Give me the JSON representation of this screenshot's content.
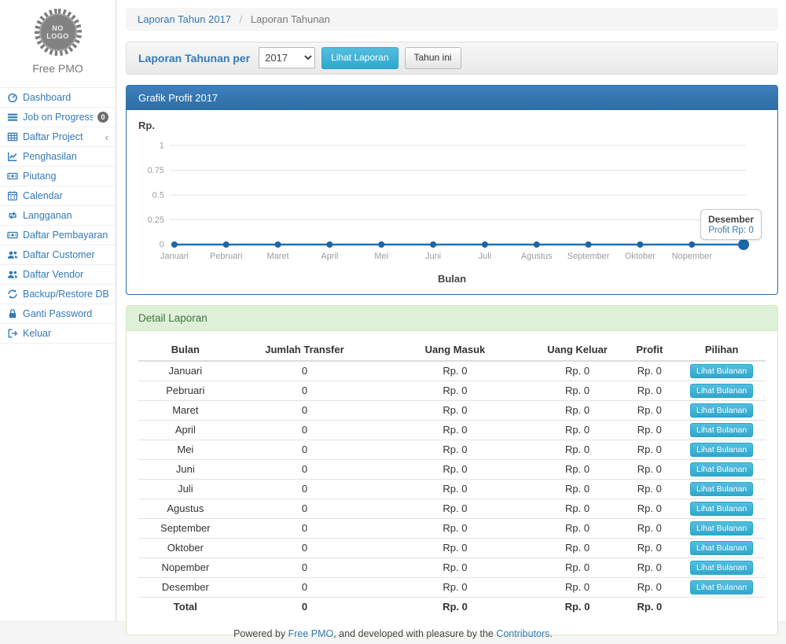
{
  "sidebar": {
    "logo_line1": "NO",
    "logo_line2": "LOGO",
    "brand": "Free PMO",
    "items": [
      {
        "label": "Dashboard",
        "icon": "dashboard-icon"
      },
      {
        "label": "Job on Progress",
        "icon": "tasks-icon",
        "badge": "0"
      },
      {
        "label": "Daftar Project",
        "icon": "table-icon",
        "chevron": "‹"
      },
      {
        "label": "Penghasilan",
        "icon": "line-chart-icon"
      },
      {
        "label": "Piutang",
        "icon": "money-icon"
      },
      {
        "label": "Calendar",
        "icon": "calendar-icon"
      },
      {
        "label": "Langganan",
        "icon": "retweet-icon"
      },
      {
        "label": "Daftar Pembayaran",
        "icon": "money-icon"
      },
      {
        "label": "Daftar Customer",
        "icon": "users-icon"
      },
      {
        "label": "Daftar Vendor",
        "icon": "users-icon"
      },
      {
        "label": "Backup/Restore DB",
        "icon": "refresh-icon"
      },
      {
        "label": "Ganti Password",
        "icon": "lock-icon"
      },
      {
        "label": "Keluar",
        "icon": "sign-out-icon"
      }
    ]
  },
  "breadcrumb": {
    "separator": "/",
    "items": [
      {
        "label": "Laporan Tahun 2017",
        "link": true
      },
      {
        "label": "Laporan Tahunan",
        "link": false
      }
    ]
  },
  "toolbar": {
    "label": "Laporan Tahunan per",
    "year_selected": "2017",
    "year_options": [
      "2017"
    ],
    "view_button": "Lihat Laporan",
    "this_year_button": "Tahun ini"
  },
  "chart_panel": {
    "title": "Grafik Profit 2017"
  },
  "chart_data": {
    "type": "line",
    "title": "Grafik Profit 2017",
    "categories": [
      "Januari",
      "Pebruari",
      "Maret",
      "April",
      "Mei",
      "Juni",
      "Juli",
      "Agustus",
      "September",
      "Oktober",
      "Nopember",
      "Desember"
    ],
    "values": [
      0,
      0,
      0,
      0,
      0,
      0,
      0,
      0,
      0,
      0,
      0,
      0
    ],
    "xlabel": "Bulan",
    "ylabel": "Rp.",
    "ylim": [
      0,
      1
    ],
    "yticks": [
      0,
      0.25,
      0.5,
      0.75,
      1
    ],
    "ytick_labels": [
      "0",
      "0.25",
      "0.5",
      "0.75",
      "1"
    ],
    "grid": true,
    "legend": false,
    "last_category_label_hidden": true,
    "highlight_point": "Desember",
    "line_color": "#2270b4",
    "point_color": "#1d66a8",
    "grid_color": "#e3e3e3",
    "axis_text_color": "#9c9c9c",
    "tooltip": {
      "title": "Desember",
      "value": "Profit Rp: 0"
    }
  },
  "detail_panel": {
    "title": "Detail Laporan",
    "columns": [
      "Bulan",
      "Jumlah Transfer",
      "Uang Masuk",
      "Uang Keluar",
      "Profit",
      "Pilihan"
    ],
    "action_label": "Lihat Bulanan",
    "rows": [
      {
        "bulan": "Januari",
        "jumlah_transfer": "0",
        "uang_masuk": "Rp. 0",
        "uang_keluar": "Rp. 0",
        "profit": "Rp. 0"
      },
      {
        "bulan": "Pebruari",
        "jumlah_transfer": "0",
        "uang_masuk": "Rp. 0",
        "uang_keluar": "Rp. 0",
        "profit": "Rp. 0"
      },
      {
        "bulan": "Maret",
        "jumlah_transfer": "0",
        "uang_masuk": "Rp. 0",
        "uang_keluar": "Rp. 0",
        "profit": "Rp. 0"
      },
      {
        "bulan": "April",
        "jumlah_transfer": "0",
        "uang_masuk": "Rp. 0",
        "uang_keluar": "Rp. 0",
        "profit": "Rp. 0"
      },
      {
        "bulan": "Mei",
        "jumlah_transfer": "0",
        "uang_masuk": "Rp. 0",
        "uang_keluar": "Rp. 0",
        "profit": "Rp. 0"
      },
      {
        "bulan": "Juni",
        "jumlah_transfer": "0",
        "uang_masuk": "Rp. 0",
        "uang_keluar": "Rp. 0",
        "profit": "Rp. 0"
      },
      {
        "bulan": "Juli",
        "jumlah_transfer": "0",
        "uang_masuk": "Rp. 0",
        "uang_keluar": "Rp. 0",
        "profit": "Rp. 0"
      },
      {
        "bulan": "Agustus",
        "jumlah_transfer": "0",
        "uang_masuk": "Rp. 0",
        "uang_keluar": "Rp. 0",
        "profit": "Rp. 0"
      },
      {
        "bulan": "September",
        "jumlah_transfer": "0",
        "uang_masuk": "Rp. 0",
        "uang_keluar": "Rp. 0",
        "profit": "Rp. 0"
      },
      {
        "bulan": "Oktober",
        "jumlah_transfer": "0",
        "uang_masuk": "Rp. 0",
        "uang_keluar": "Rp. 0",
        "profit": "Rp. 0"
      },
      {
        "bulan": "Nopember",
        "jumlah_transfer": "0",
        "uang_masuk": "Rp. 0",
        "uang_keluar": "Rp. 0",
        "profit": "Rp. 0"
      },
      {
        "bulan": "Desember",
        "jumlah_transfer": "0",
        "uang_masuk": "Rp. 0",
        "uang_keluar": "Rp. 0",
        "profit": "Rp. 0"
      }
    ],
    "total_row": {
      "bulan": "Total",
      "jumlah_transfer": "0",
      "uang_masuk": "Rp. 0",
      "uang_keluar": "Rp. 0",
      "profit": "Rp. 0"
    }
  },
  "footer": {
    "prefix": "Powered by ",
    "link1": "Free PMO",
    "middle": ", and developed with pleasure by the ",
    "link2": "Contributors",
    "suffix": "."
  },
  "colors": {
    "link_blue": "#337ab7",
    "panel_primary": "#2e6da4",
    "panel_success_bg": "#dff0d8",
    "panel_success_text": "#3c763d",
    "button_info": "#2fa8cc",
    "footer_bg": "#f5f5f5"
  }
}
